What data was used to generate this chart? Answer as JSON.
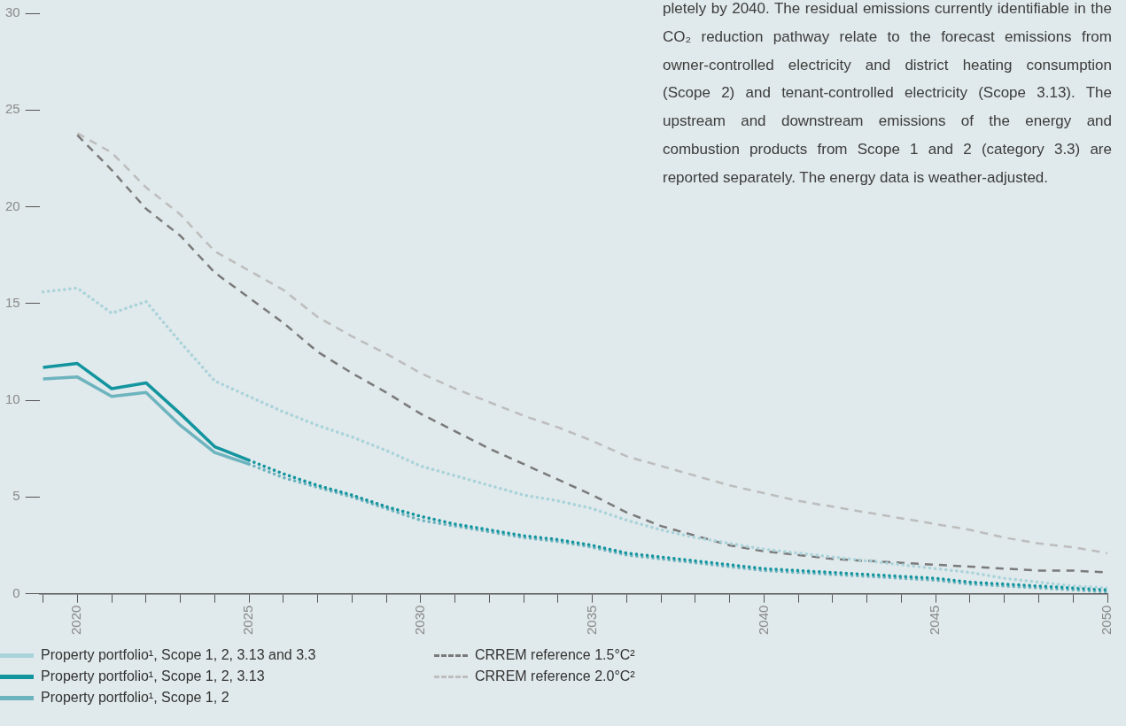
{
  "chart_data": {
    "type": "line",
    "x": [
      2019,
      2020,
      2021,
      2022,
      2023,
      2024,
      2025,
      2026,
      2027,
      2028,
      2029,
      2030,
      2031,
      2032,
      2033,
      2034,
      2035,
      2036,
      2037,
      2038,
      2039,
      2040,
      2041,
      2042,
      2043,
      2044,
      2045,
      2046,
      2047,
      2048,
      2049,
      2050
    ],
    "xlim": [
      2018.9,
      2050
    ],
    "xticks": [
      {
        "value": 2019,
        "label": null
      },
      2020,
      {
        "value": 2021,
        "label": null
      },
      {
        "value": 2022,
        "label": null
      },
      {
        "value": 2023,
        "label": null
      },
      {
        "value": 2024,
        "label": null
      },
      2025,
      {
        "value": 2026,
        "label": null
      },
      {
        "value": 2027,
        "label": null
      },
      {
        "value": 2028,
        "label": null
      },
      {
        "value": 2029,
        "label": null
      },
      2030,
      {
        "value": 2031,
        "label": null
      },
      {
        "value": 2032,
        "label": null
      },
      {
        "value": 2033,
        "label": null
      },
      {
        "value": 2034,
        "label": null
      },
      2035,
      {
        "value": 2036,
        "label": null
      },
      {
        "value": 2037,
        "label": null
      },
      {
        "value": 2038,
        "label": null
      },
      {
        "value": 2039,
        "label": null
      },
      2040,
      {
        "value": 2041,
        "label": null
      },
      {
        "value": 2042,
        "label": null
      },
      {
        "value": 2043,
        "label": null
      },
      {
        "value": 2044,
        "label": null
      },
      2045,
      {
        "value": 2046,
        "label": null
      },
      {
        "value": 2047,
        "label": null
      },
      {
        "value": 2048,
        "label": null
      },
      {
        "value": 2049,
        "label": null
      },
      2050
    ],
    "ylim": [
      0,
      30
    ],
    "yticks": [
      0,
      5,
      10,
      15,
      20,
      25,
      30
    ],
    "grid": false,
    "legend": "bottom left",
    "marker": "none",
    "series": [
      {
        "name": "Property portfolio¹, Scope 1, 2, 3.13 and 3.3",
        "color": "#a9d3da",
        "line_style": "dotted",
        "values": [
          15.6,
          15.8,
          14.5,
          15.1,
          13.0,
          11.0,
          10.2,
          9.4,
          8.7,
          8.1,
          7.4,
          6.6,
          6.1,
          5.6,
          5.1,
          4.8,
          4.4,
          3.8,
          3.3,
          2.9,
          2.6,
          2.3,
          2.1,
          1.9,
          1.7,
          1.5,
          1.3,
          1.1,
          0.8,
          0.6,
          0.4,
          0.3
        ]
      },
      {
        "name": "Property portfolio¹, Scope 1, 2, 3.13",
        "color": "#13959f",
        "line_style": "solid",
        "values": [
          11.7,
          11.9,
          10.6,
          10.9,
          9.3,
          7.6,
          6.9,
          null,
          null,
          null,
          null,
          null,
          null,
          null,
          null,
          null,
          null,
          null,
          null,
          null,
          null,
          null,
          null,
          null,
          null,
          null,
          null,
          null,
          null,
          null,
          null,
          null
        ]
      },
      {
        "color": "#13959f",
        "line_style": "dotted",
        "values": [
          null,
          null,
          null,
          null,
          null,
          null,
          6.9,
          6.2,
          5.6,
          5.1,
          4.5,
          4.0,
          3.6,
          3.3,
          3.0,
          2.8,
          2.5,
          2.1,
          1.9,
          1.7,
          1.5,
          1.3,
          1.2,
          1.1,
          1.0,
          0.9,
          0.8,
          0.6,
          0.5,
          0.4,
          0.3,
          0.2
        ]
      },
      {
        "name": "Property portfolio¹, Scope 1, 2",
        "color": "#6db4bf",
        "line_style": "solid",
        "values": [
          11.1,
          11.2,
          10.2,
          10.4,
          8.7,
          7.3,
          6.7,
          null,
          null,
          null,
          null,
          null,
          null,
          null,
          null,
          null,
          null,
          null,
          null,
          null,
          null,
          null,
          null,
          null,
          null,
          null,
          null,
          null,
          null,
          null,
          null,
          null
        ]
      },
      {
        "color": "#6db4bf",
        "line_style": "dotted",
        "values": [
          null,
          null,
          null,
          null,
          null,
          null,
          6.7,
          6.0,
          5.5,
          5.0,
          4.4,
          3.8,
          3.5,
          3.2,
          2.9,
          2.7,
          2.4,
          2.0,
          1.8,
          1.6,
          1.4,
          1.2,
          1.1,
          1.0,
          0.9,
          0.8,
          0.7,
          0.5,
          0.4,
          0.3,
          0.2,
          0.1
        ]
      },
      {
        "name": "CRREM reference 1.5°C²",
        "color": "#7a7a7a",
        "line_style": "dashed",
        "values": [
          null,
          23.7,
          21.9,
          19.9,
          18.5,
          16.6,
          15.3,
          14.0,
          12.5,
          11.4,
          10.4,
          9.3,
          8.4,
          7.5,
          6.7,
          5.9,
          5.1,
          4.2,
          3.5,
          3.0,
          2.5,
          2.2,
          2.0,
          1.8,
          1.7,
          1.6,
          1.5,
          1.4,
          1.3,
          1.2,
          1.2,
          1.1
        ]
      },
      {
        "name": "CRREM reference 2.0°C²",
        "color": "#bdbdbd",
        "line_style": "dashed",
        "values": [
          null,
          23.8,
          22.8,
          21.0,
          19.6,
          17.7,
          16.7,
          15.7,
          14.3,
          13.3,
          12.4,
          11.4,
          10.6,
          9.9,
          9.2,
          8.6,
          7.9,
          7.1,
          6.6,
          6.1,
          5.6,
          5.2,
          4.8,
          4.5,
          4.2,
          3.9,
          3.6,
          3.3,
          2.9,
          2.6,
          2.4,
          2.1
        ]
      }
    ],
    "annotations": [
      "pletely by 2040. The residual emissions currently identifiable in the CO₂ reduction pathway relate to the forecast emissions from owner-controlled electricity and district heating consumption (Scope 2) and tenant-controlled electricity (Scope 3.13). The upstream and downstream emissions of the energy and combustion products from Scope 1 and 2 (category 3.3) are reported separately. The energy data is weather-adjusted."
    ]
  }
}
